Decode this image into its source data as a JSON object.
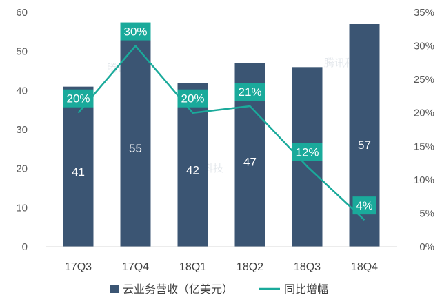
{
  "chart_data": {
    "type": "bar",
    "categories": [
      "17Q3",
      "17Q4",
      "18Q1",
      "18Q2",
      "18Q3",
      "18Q4"
    ],
    "series": [
      {
        "name": "云业务营收（亿美元）",
        "kind": "bar",
        "axis": "left",
        "values": [
          41,
          55,
          42,
          47,
          46,
          57
        ],
        "labels": [
          "41",
          "55",
          "42",
          "47",
          "",
          "57"
        ]
      },
      {
        "name": "同比增幅",
        "kind": "line",
        "axis": "right",
        "values": [
          20,
          30,
          20,
          21,
          12,
          4
        ],
        "labels": [
          "20%",
          "30%",
          "20%",
          "21%",
          "12%",
          "4%"
        ]
      }
    ],
    "y_left": {
      "min": 0,
      "max": 60,
      "ticks": [
        "0",
        "10",
        "20",
        "30",
        "40",
        "50",
        "60"
      ]
    },
    "y_right": {
      "min": 0,
      "max": 35,
      "ticks": [
        "0%",
        "5%",
        "10%",
        "15%",
        "20%",
        "25%",
        "30%",
        "35%"
      ]
    },
    "grid": false,
    "legend_position": "bottom",
    "colors": {
      "bar": "#3b5573",
      "line": "#1aaa9b",
      "label_box": "#1aaa9b"
    },
    "watermark": "腾讯科技"
  }
}
